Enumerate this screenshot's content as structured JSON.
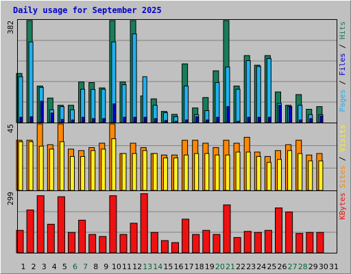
{
  "chart_data": {
    "type": "bar",
    "title": "Daily usage for September 2025",
    "colors": {
      "hits": "#1a7d5a",
      "files": "#22b0ee",
      "pages": "#0000cc",
      "visits": "#ff8800",
      "sites": "#ffee22",
      "kbytes": "#ee1111",
      "weekend_label": "#006633",
      "weekday_label": "#000000",
      "title": "#0000cc"
    },
    "categories": [
      "1",
      "2",
      "3",
      "4",
      "5",
      "6",
      "7",
      "8",
      "9",
      "10",
      "11",
      "12",
      "13",
      "14",
      "15",
      "16",
      "17",
      "18",
      "19",
      "20",
      "21",
      "22",
      "23",
      "24",
      "25",
      "26",
      "27",
      "28",
      "29",
      "30",
      "31"
    ],
    "weekend_days": [
      6,
      7,
      13,
      14,
      20,
      21,
      27,
      28
    ],
    "panels": [
      {
        "id": "hits-files-pages",
        "ymax_label": "382",
        "ylim": [
          0,
          382
        ],
        "axis_label_parts": [
          {
            "text": "Pages",
            "color": "#22b0ee"
          },
          {
            "text": " / ",
            "color": "#000000"
          },
          {
            "text": "Files",
            "color": "#0000cc"
          },
          {
            "text": " / ",
            "color": "#000000"
          },
          {
            "text": "Hits",
            "color": "#1a7d5a"
          }
        ],
        "series": [
          {
            "name": "Hits",
            "values": [
              184,
              382,
              137,
              92,
              65,
              65,
              152,
              150,
              130,
              382,
              152,
              382,
              100,
              89,
              42,
              31,
              220,
              55,
              94,
              194,
              382,
              137,
              251,
              215,
              251,
              115,
              65,
              105,
              50,
              60,
              0
            ]
          },
          {
            "name": "Files",
            "values": [
              172,
              302,
              132,
              48,
              60,
              48,
              125,
              124,
              125,
              302,
              142,
              332,
              172,
              65,
              37,
              22,
              137,
              30,
              45,
              150,
              208,
              125,
              232,
              210,
              240,
              72,
              60,
              65,
              30,
              30,
              0
            ]
          },
          {
            "name": "Pages",
            "values": [
              20,
              22,
              80,
              36,
              12,
              10,
              20,
              15,
              15,
              70,
              20,
              20,
              20,
              15,
              8,
              5,
              10,
              22,
              10,
              20,
              60,
              5,
              20,
              20,
              20,
              65,
              60,
              10,
              15,
              25,
              0
            ]
          }
        ]
      },
      {
        "id": "visits-sites",
        "ymax_label": "45",
        "ylim": [
          0,
          45
        ],
        "axis_label_parts": [
          {
            "text": "Sites",
            "color": "#ff8800"
          },
          {
            "text": " / ",
            "color": "#000000"
          },
          {
            "text": "Visits",
            "color": "#ffee22"
          }
        ],
        "series": [
          {
            "name": "Visits",
            "values": [
              34,
              34,
              45,
              31,
              45,
              28,
              27,
              29,
              32,
              45,
              25,
              32,
              29,
              25,
              24,
              24,
              34,
              34,
              32,
              29,
              34,
              32,
              36,
              26,
              23,
              27,
              31,
              34,
              24,
              25,
              0
            ]
          },
          {
            "name": "Sites",
            "values": [
              33,
              33,
              30,
              28,
              33,
              23,
              23,
              27,
              28,
              35,
              25,
              25,
              27,
              25,
              22,
              22,
              24,
              25,
              25,
              24,
              24,
              26,
              26,
              23,
              19,
              21,
              27,
              25,
              20,
              20,
              0
            ]
          }
        ]
      },
      {
        "id": "kbytes",
        "ymax_label": "299",
        "ylim": [
          0,
          299
        ],
        "axis_label_parts": [
          {
            "text": "KBytes",
            "color": "#ee1111"
          }
        ],
        "series": [
          {
            "name": "KBytes",
            "values": [
              110,
              210,
              280,
              140,
              275,
              100,
              160,
              90,
              80,
              280,
              90,
              145,
              290,
              100,
              60,
              50,
              165,
              90,
              110,
              90,
              235,
              75,
              105,
              100,
              110,
              220,
              200,
              95,
              100,
              100,
              0
            ]
          }
        ]
      }
    ]
  }
}
